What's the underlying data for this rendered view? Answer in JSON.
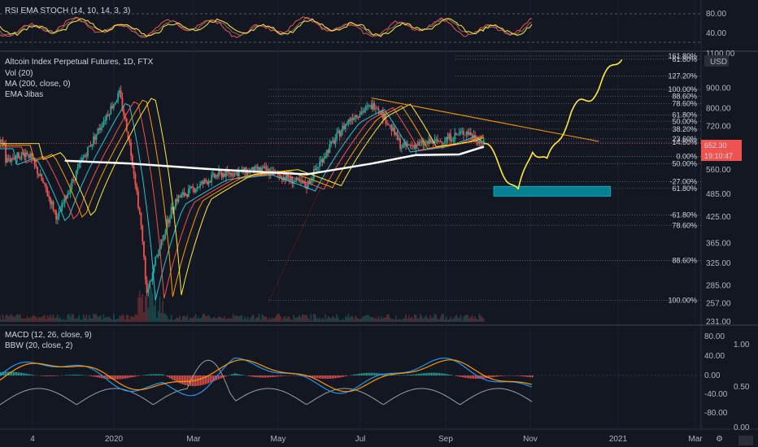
{
  "rsi_pane": {
    "title": "RSI EMA STOCH (14, 10, 14, 3, 3)",
    "axis_labels": [
      "80.00",
      "40.00"
    ]
  },
  "main_pane": {
    "title": "Altcoin Index Perpetual Futures, 1D, FTX",
    "legend": [
      "Vol (20)",
      "MA (200, close, 0)",
      "EMA Jibas"
    ],
    "price_axis": [
      "1100.00",
      "900.00",
      "800.00",
      "720.00",
      "640.00",
      "560.00",
      "485.00",
      "425.00",
      "365.00",
      "325.00",
      "285.00",
      "257.00",
      "231.00"
    ],
    "currency": "USD",
    "price_badge": "652.30",
    "countdown_badge": "19:10:47",
    "fib_labels": [
      {
        "text": "161.80%",
        "price": 1085,
        "color": "#d1d4dc"
      },
      {
        "text": "61.80%",
        "price": 1065,
        "color": "#d1d4dc"
      },
      {
        "text": "127.20%",
        "price": 965,
        "color": "#e53935"
      },
      {
        "text": "100.00%",
        "price": 893,
        "color": "#d1d4dc"
      },
      {
        "text": "88.60%",
        "price": 858,
        "color": "#d1d4dc"
      },
      {
        "text": "78.60%",
        "price": 823,
        "color": "#d1d4dc"
      },
      {
        "text": "61.80%",
        "price": 770,
        "color": "#d1d4dc"
      },
      {
        "text": "50.00%",
        "price": 742,
        "color": "#d1d4dc"
      },
      {
        "text": "38.20%",
        "price": 709,
        "color": "#d1d4dc"
      },
      {
        "text": "23.60%",
        "price": 670,
        "color": "#d1d4dc"
      },
      {
        "text": "14.60%",
        "price": 657,
        "color": "#d1d4dc"
      },
      {
        "text": "0.00%",
        "price": 605,
        "color": "#d1d4dc"
      },
      {
        "text": "50.00%",
        "price": 580,
        "color": "#d1d4dc"
      },
      {
        "text": "-27.00%",
        "price": 522,
        "color": "#d1d4dc"
      },
      {
        "text": "61.80%",
        "price": 502,
        "color": "#d1d4dc"
      },
      {
        "text": "-61.80%",
        "price": 430,
        "color": "#d1d4dc"
      },
      {
        "text": "78.60%",
        "price": 405,
        "color": "#d1d4dc"
      },
      {
        "text": "88.60%",
        "price": 330,
        "color": "#d1d4dc"
      },
      {
        "text": "100.00%",
        "price": 262,
        "color": "#d1d4dc"
      }
    ]
  },
  "macd_pane": {
    "title": "MACD (12, 26, close, 9)",
    "subtitle": "BBW (20, close, 2)",
    "left_axis": [
      "80.00",
      "40.00",
      "0.00",
      "-40.00",
      "-80.00"
    ],
    "right_axis": [
      "1.00",
      "0.50",
      "0.00"
    ]
  },
  "time_axis": [
    "4",
    "2020",
    "Mar",
    "May",
    "Jul",
    "Sep",
    "Nov",
    "2021",
    "Mar"
  ],
  "colors": {
    "bg": "#131722",
    "up": "#26a69a",
    "down": "#ef5350",
    "ma200": "#ffffff",
    "projection": "#ffeb3b",
    "box": "#00acc1",
    "price_badge_bg": "#ef5350"
  },
  "chart_data": {
    "type": "candlestick",
    "title": "Altcoin Index Perpetual Futures, 1D, FTX",
    "ylim": [
      231,
      1100
    ],
    "y_scale": "log",
    "last_price": 652.3,
    "series": [
      {
        "name": "MA (200, close, 0)",
        "x": [
          "2020-01-15",
          "2020-03-01",
          "2020-05-01",
          "2020-07-01",
          "2020-08-15",
          "2020-09-15",
          "2020-10-15",
          "2020-11-01"
        ],
        "values": [
          590,
          580,
          560,
          545,
          580,
          610,
          612,
          640
        ]
      }
    ],
    "price_path": {
      "x": [
        "2019-12-05",
        "2019-12-20",
        "2020-01-10",
        "2020-02-05",
        "2020-02-22",
        "2020-03-12",
        "2020-04-01",
        "2020-05-01",
        "2020-06-01",
        "2020-07-01",
        "2020-08-01",
        "2020-08-18",
        "2020-09-05",
        "2020-10-01",
        "2020-10-20",
        "2020-11-01"
      ],
      "values": [
        590,
        620,
        420,
        680,
        870,
        270,
        470,
        545,
        560,
        510,
        760,
        820,
        640,
        660,
        700,
        652
      ]
    },
    "projection": {
      "x": [
        "2020-11-01",
        "2020-11-10",
        "2020-11-25",
        "2020-12-05",
        "2020-12-15",
        "2021-01-01",
        "2021-01-20",
        "2021-02-05"
      ],
      "values": [
        652,
        590,
        485,
        640,
        580,
        780,
        900,
        1100
      ]
    },
    "target_zone": {
      "x": [
        "2020-11-08",
        "2021-01-28"
      ],
      "values": [
        480,
        508
      ]
    },
    "resistance_trendline": {
      "x": [
        "2020-08-15",
        "2021-01-20"
      ],
      "values": [
        850,
        660
      ]
    }
  }
}
